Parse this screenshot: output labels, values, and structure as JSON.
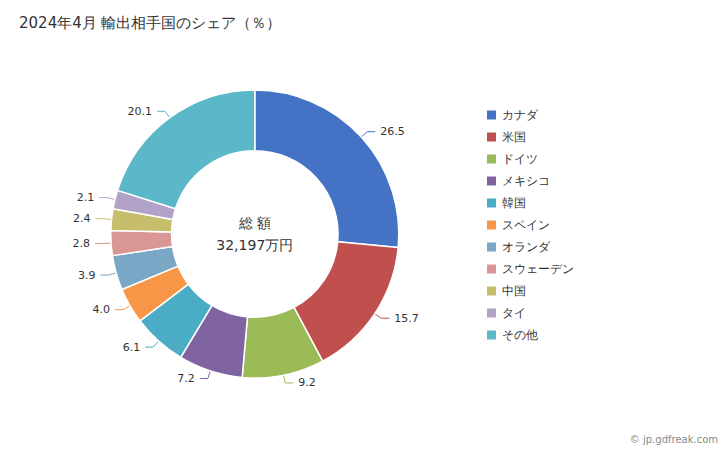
{
  "chart_data": {
    "type": "pie",
    "title": "2024年4月 輸出相手国のシェア（％）",
    "categories": [
      "カナダ",
      "米国",
      "ドイツ",
      "メキシコ",
      "韓国",
      "スペイン",
      "オランダ",
      "スウェーデン",
      "中国",
      "タイ",
      "その他"
    ],
    "values": [
      26.5,
      15.7,
      9.2,
      7.2,
      6.1,
      4.0,
      3.9,
      2.8,
      2.4,
      2.1,
      20.1
    ],
    "value_labels": [
      "26.5",
      "15.7",
      "9.2",
      "7.2",
      "6.1",
      "4.0",
      "3.9",
      "2.8",
      "2.4",
      "2.1",
      "20.1"
    ],
    "colors": [
      "#4472C4",
      "#C0504D",
      "#9BBB59",
      "#8064A2",
      "#4BACC6",
      "#F79646",
      "#7BA7C7",
      "#D99694",
      "#C6BE6B",
      "#B3A2C7",
      "#5BB8C8"
    ],
    "data_labels": true,
    "legend": "right",
    "center_text": [
      "総 額",
      "32,197万円"
    ],
    "footer": "© jp.gdfreak.com"
  }
}
